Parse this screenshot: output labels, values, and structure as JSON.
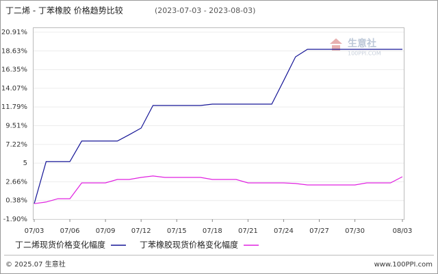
{
  "chart_data": {
    "type": "line",
    "title": "丁二烯 - 丁苯橡胶 价格趋势比较",
    "subtitle": "(2023-07-03 - 2023-08-03)",
    "categories": [
      "07/03",
      null,
      null,
      "07/06",
      null,
      null,
      "07/09",
      null,
      null,
      "07/12",
      null,
      null,
      "07/15",
      null,
      null,
      "07/18",
      null,
      null,
      "07/21",
      null,
      null,
      "07/24",
      null,
      null,
      "07/27",
      null,
      null,
      "07/30",
      null,
      null,
      null,
      "08/03"
    ],
    "series": [
      {
        "name": "丁二烯现货价格变化幅度",
        "color": "#141496",
        "values": [
          0,
          5.13,
          5.13,
          5.13,
          7.63,
          7.63,
          7.63,
          7.63,
          8.4,
          9.21,
          11.97,
          11.97,
          11.97,
          11.97,
          11.97,
          12.14,
          12.14,
          12.14,
          12.14,
          12.14,
          12.14,
          15.0,
          17.9,
          18.82,
          18.82,
          18.82,
          18.82,
          18.82,
          18.82,
          18.82,
          18.82,
          18.82
        ]
      },
      {
        "name": "丁苯橡胶现货价格变化幅度",
        "color": "#e020e0",
        "values": [
          0,
          0.2,
          0.6,
          0.6,
          2.53,
          2.53,
          2.53,
          2.95,
          2.95,
          3.2,
          3.37,
          3.2,
          3.2,
          3.2,
          3.2,
          2.95,
          2.95,
          2.95,
          2.53,
          2.53,
          2.53,
          2.53,
          2.45,
          2.28,
          2.28,
          2.28,
          2.28,
          2.28,
          2.53,
          2.53,
          2.53,
          3.28
        ]
      }
    ],
    "ylim": [
      -1.9,
      20.91
    ],
    "yticks": [
      {
        "value": -1.9,
        "label": "-1.90%"
      },
      {
        "value": 0.38,
        "label": "0.38%"
      },
      {
        "value": 2.66,
        "label": "2.66%"
      },
      {
        "value": 4.94,
        "label": "5"
      },
      {
        "value": 7.22,
        "label": "7.22%"
      },
      {
        "value": 9.51,
        "label": "9.51%"
      },
      {
        "value": 11.79,
        "label": "11.79%"
      },
      {
        "value": 14.07,
        "label": "14.07%"
      },
      {
        "value": 16.35,
        "label": "16.35%"
      },
      {
        "value": 18.63,
        "label": "18.63%"
      },
      {
        "value": 20.91,
        "label": "20.91%"
      }
    ],
    "grid": true,
    "watermark": [
      "生意社",
      "100PPI.COM"
    ],
    "footer_left": "© 2025.07 生意社",
    "footer_right": "www.100PPI.com"
  }
}
